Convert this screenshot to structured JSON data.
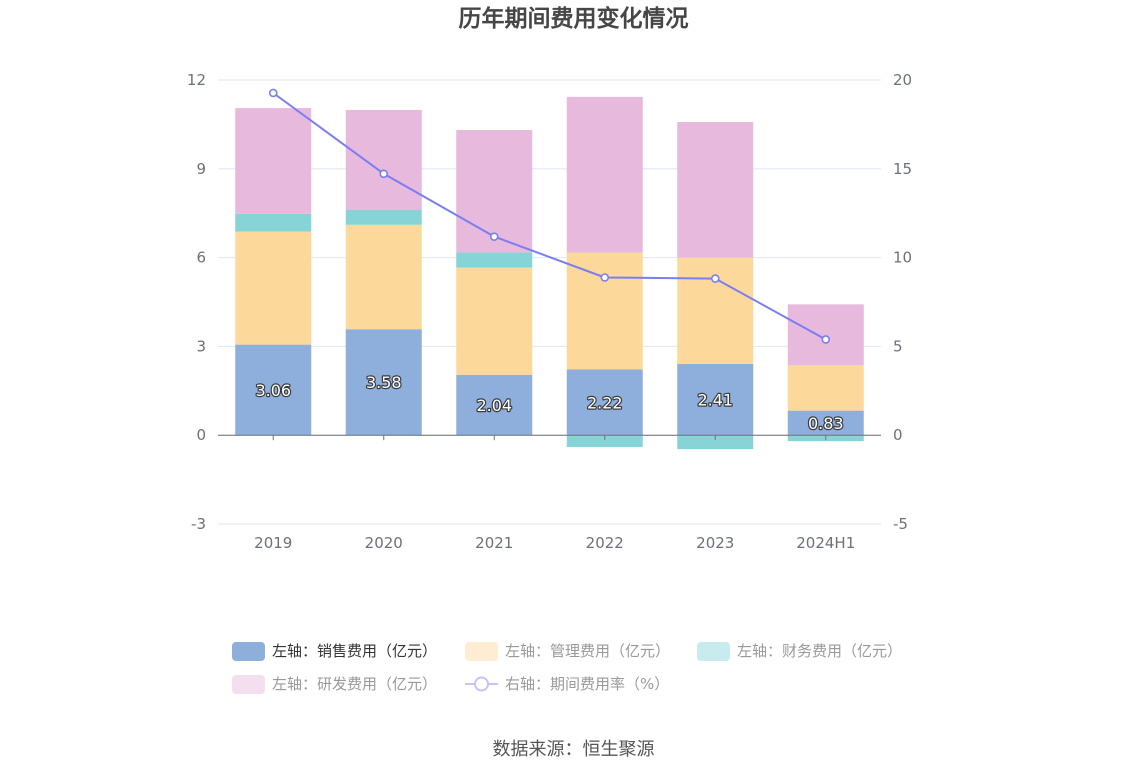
{
  "source": "数据来源：恒生聚源",
  "chart_data": {
    "type": "bar",
    "stacked": true,
    "title": "历年期间费用变化情况",
    "categories": [
      "2019",
      "2020",
      "2021",
      "2022",
      "2023",
      "2024H1"
    ],
    "ylim": [
      -3,
      12
    ],
    "yticks": [
      -3,
      0,
      3,
      6,
      9,
      12
    ],
    "ylim_right": [
      -5,
      20
    ],
    "yticks_right": [
      -5,
      0,
      5,
      10,
      15,
      20
    ],
    "legend": "bottom",
    "series": [
      {
        "name": "左轴：销售费用（亿元）",
        "type": "bar",
        "color": "#8eaedc",
        "labels": true,
        "values": [
          3.06,
          3.58,
          2.04,
          2.22,
          2.41,
          0.83
        ]
      },
      {
        "name": "左轴：管理费用（亿元）",
        "type": "bar",
        "color": "#fdd89b",
        "values": [
          3.82,
          3.53,
          3.62,
          3.95,
          3.59,
          1.53
        ]
      },
      {
        "name": "左轴：财务费用（亿元）",
        "type": "bar",
        "color": "#86d4d6",
        "values": [
          0.6,
          0.51,
          0.51,
          -0.4,
          -0.47,
          -0.2
        ]
      },
      {
        "name": "左轴：研发费用（亿元）",
        "type": "bar",
        "color": "#e7b9dc",
        "values": [
          3.57,
          3.37,
          4.14,
          5.26,
          4.58,
          2.06
        ]
      },
      {
        "name": "右轴：期间费用率（%）",
        "type": "line",
        "color": "#7b7ef0",
        "values": [
          19.27,
          14.72,
          11.18,
          8.88,
          8.82,
          5.39
        ]
      }
    ]
  }
}
